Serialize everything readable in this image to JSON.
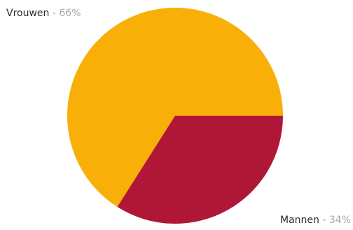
{
  "chart_data": {
    "type": "pie",
    "slices": [
      {
        "label": "Vrouwen",
        "value": 66,
        "value_label": "66%",
        "color": "#f8b009"
      },
      {
        "label": "Mannen",
        "value": 34,
        "value_label": "34%",
        "color": "#b01736"
      }
    ],
    "separator": "-",
    "legend": "none"
  }
}
